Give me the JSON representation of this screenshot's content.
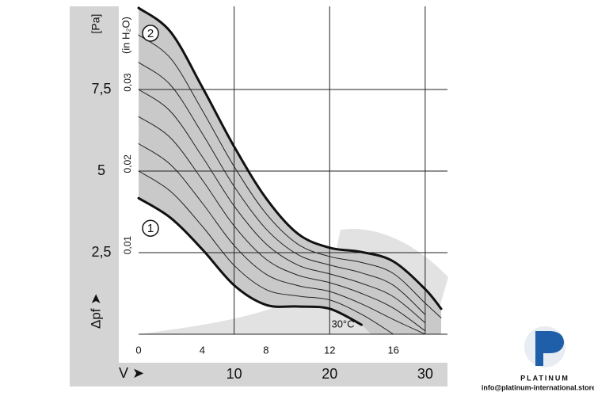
{
  "chart_data": {
    "type": "line",
    "y_unit_label": "[Pa]",
    "y_axis_label": "Δpf ➤",
    "y2_axis_label": "(in H₂O)",
    "x2_axis_label": "V ➤",
    "annotation": "30°C",
    "x": [
      0,
      2,
      4,
      6,
      8,
      10,
      12,
      14,
      16,
      18,
      19
    ],
    "xlim": [
      0,
      19
    ],
    "xticks": [
      0,
      4,
      8,
      12,
      16
    ],
    "x2lim": [
      0,
      31.67
    ],
    "x2ticks": [
      10,
      20,
      30
    ],
    "ylim": [
      0,
      10
    ],
    "yticks": [
      {
        "value": 2.5,
        "label": "2,5"
      },
      5,
      {
        "value": 7.5,
        "label": "7,5"
      }
    ],
    "y2lim": [
      0,
      0.0401
    ],
    "y2ticks": [
      {
        "value": 0.01,
        "label": "0,01"
      },
      {
        "value": 0.02,
        "label": "0,02"
      },
      {
        "value": 0.03,
        "label": "0,03"
      }
    ],
    "grid": true,
    "band_color": "#c9c9c9",
    "series": [
      {
        "name": "2",
        "color": "#111111",
        "width": 3,
        "values": [
          10.0,
          9.27,
          7.57,
          5.75,
          4.17,
          3.08,
          2.65,
          2.52,
          2.23,
          1.38,
          0.78
        ]
      },
      {
        "color": "#222222",
        "width": 1,
        "values": [
          9.17,
          8.46,
          6.86,
          5.14,
          3.7,
          2.76,
          2.38,
          2.2,
          1.86,
          0.95,
          0.5
        ]
      },
      {
        "color": "#222222",
        "width": 1,
        "values": [
          8.33,
          7.64,
          6.15,
          4.53,
          3.23,
          2.44,
          2.12,
          1.88,
          1.5,
          0.6,
          null
        ]
      },
      {
        "color": "#222222",
        "width": 1,
        "values": [
          7.5,
          6.83,
          5.44,
          3.93,
          2.77,
          2.12,
          1.85,
          1.56,
          1.15,
          0.35,
          null
        ]
      },
      {
        "color": "#222222",
        "width": 1,
        "values": [
          6.67,
          6.02,
          4.73,
          3.32,
          2.3,
          1.81,
          1.58,
          1.25,
          0.8,
          0.1,
          null
        ]
      },
      {
        "color": "#222222",
        "width": 1,
        "values": [
          5.84,
          5.2,
          4.02,
          2.72,
          1.84,
          1.49,
          1.31,
          0.93,
          0.45,
          0,
          null
        ]
      },
      {
        "color": "#222222",
        "width": 1,
        "values": [
          5.0,
          4.38,
          3.31,
          2.11,
          1.37,
          1.17,
          1.05,
          0.61,
          0,
          null,
          null
        ]
      },
      {
        "name": "1",
        "color": "#111111",
        "width": 3,
        "values": [
          4.17,
          3.57,
          2.6,
          1.5,
          0.9,
          0.85,
          0.78,
          0.29,
          null,
          null,
          null
        ]
      }
    ]
  },
  "watermark": {
    "brand": "PLATINUM",
    "email": "info@platinum-international.store"
  }
}
